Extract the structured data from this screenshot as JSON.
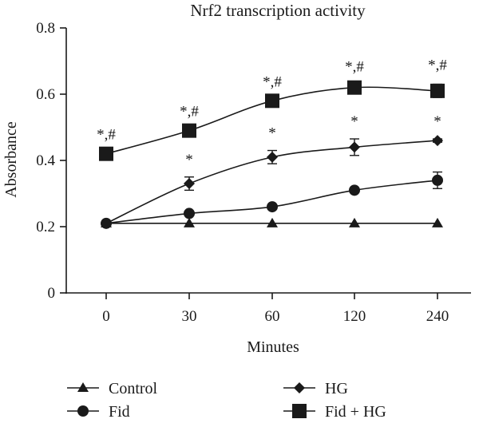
{
  "chart_data": {
    "type": "line",
    "title": "Nrf2 transcription activity",
    "xlabel": "Minutes",
    "ylabel": "Absorbance",
    "categories": [
      "0",
      "30",
      "60",
      "120",
      "240"
    ],
    "ylim": [
      0,
      0.8
    ],
    "yticks": [
      "0",
      "0.2",
      "0.4",
      "0.6",
      "0.8"
    ],
    "legend_position": "bottom",
    "series": [
      {
        "name": "Control",
        "marker": "triangle",
        "values": [
          0.21,
          0.21,
          0.21,
          0.21,
          0.21
        ],
        "errors": [
          0,
          0,
          0,
          0,
          0
        ]
      },
      {
        "name": "Fid",
        "marker": "circle",
        "values": [
          0.21,
          0.24,
          0.26,
          0.31,
          0.34
        ],
        "errors": [
          0,
          0,
          0,
          0.005,
          0.025
        ]
      },
      {
        "name": "HG",
        "marker": "diamond",
        "values": [
          0.21,
          0.33,
          0.41,
          0.44,
          0.46
        ],
        "errors": [
          0,
          0.02,
          0.02,
          0.025,
          0.005
        ]
      },
      {
        "name": "Fid + HG",
        "marker": "square",
        "values": [
          0.42,
          0.49,
          0.58,
          0.62,
          0.61
        ],
        "errors": [
          0,
          0,
          0,
          0.005,
          0.02
        ]
      }
    ],
    "annotations": [
      {
        "series": "Fid + HG",
        "category": "0",
        "text": "*,#"
      },
      {
        "series": "Fid + HG",
        "category": "30",
        "text": "*,#"
      },
      {
        "series": "Fid + HG",
        "category": "60",
        "text": "*,#"
      },
      {
        "series": "Fid + HG",
        "category": "120",
        "text": "*,#"
      },
      {
        "series": "Fid + HG",
        "category": "240",
        "text": "*,#"
      },
      {
        "series": "HG",
        "category": "30",
        "text": "*"
      },
      {
        "series": "HG",
        "category": "60",
        "text": "*"
      },
      {
        "series": "HG",
        "category": "120",
        "text": "*"
      },
      {
        "series": "HG",
        "category": "240",
        "text": "*"
      }
    ],
    "colors": {
      "ink": "#1a1a1a",
      "background": "#ffffff"
    }
  }
}
